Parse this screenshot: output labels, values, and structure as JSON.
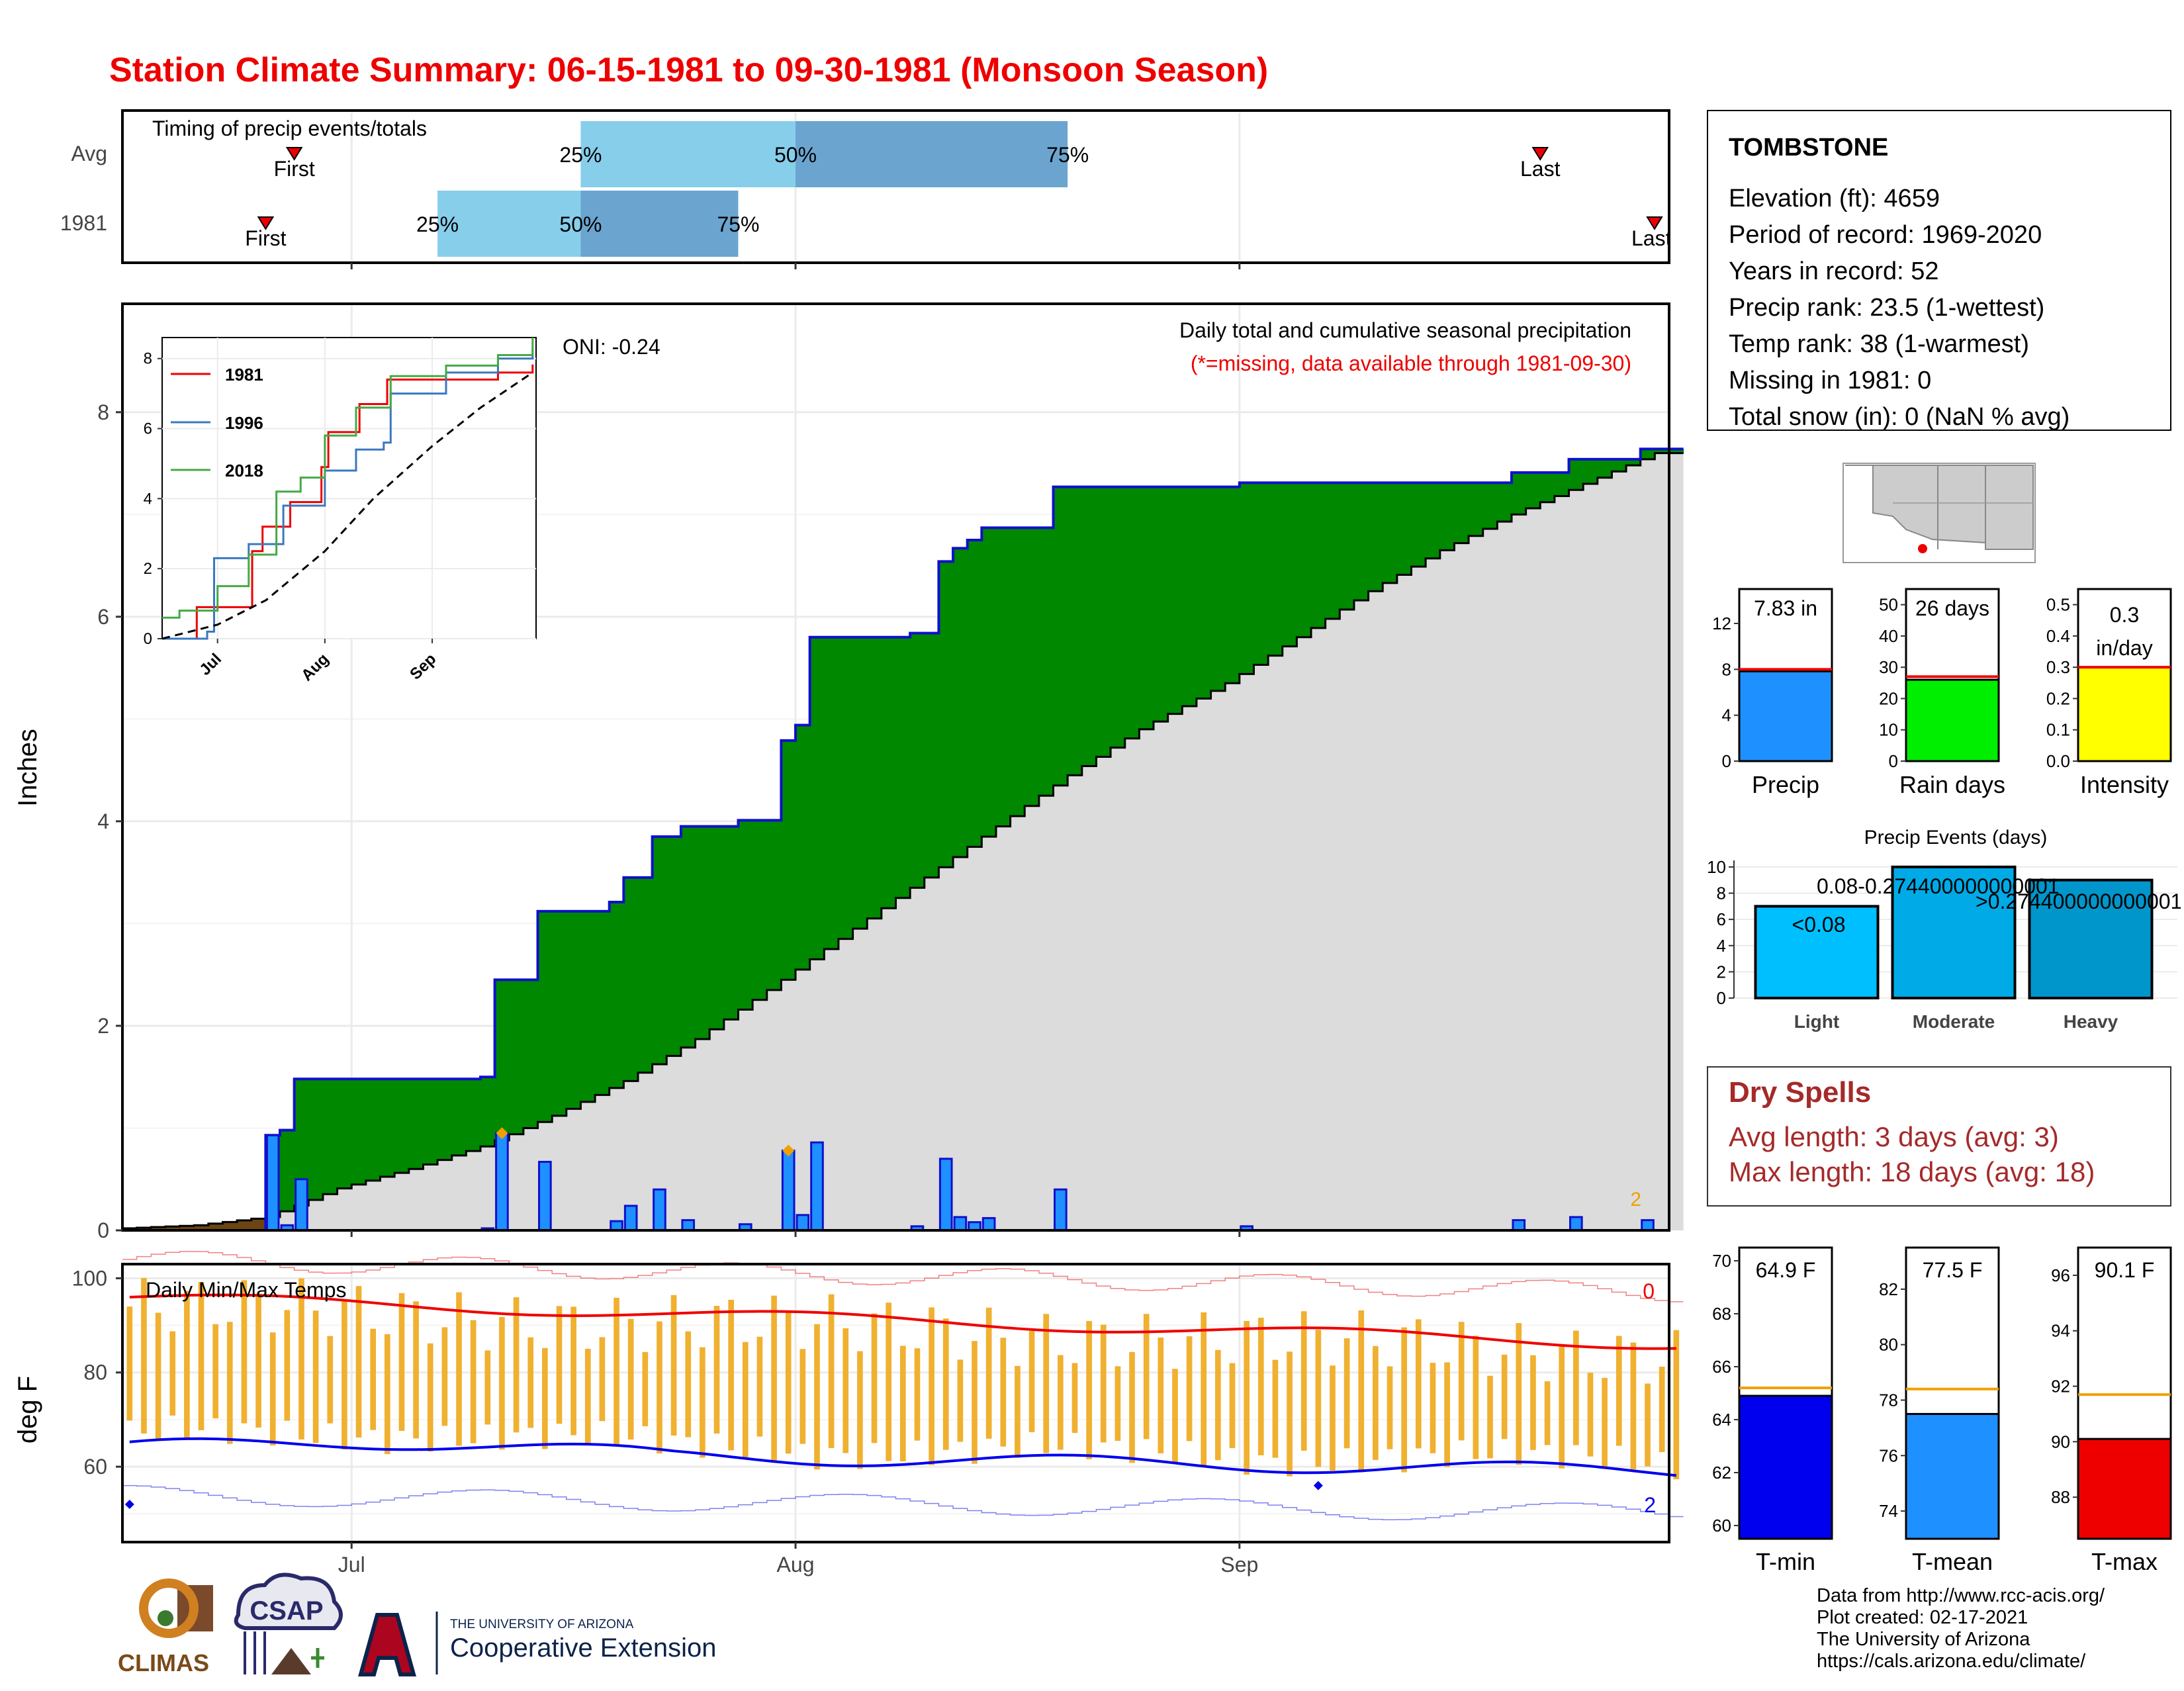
{
  "title": "Station Climate Summary: 06-15-1981 to 09-30-1981 (Monsoon Season)",
  "colors": {
    "title": "#ee0000",
    "green": "#008800",
    "brown": "#6b4513",
    "blue_bar": "#1e90ff",
    "dry": "#a52a2a",
    "tmin": "#0000ee",
    "tmean": "#1e90ff",
    "tmax": "#ee0000",
    "rain": "#00ee00",
    "intensity": "#ffff00",
    "orange": "#f0a000"
  },
  "timing": {
    "title": "Timing of precip events/totals",
    "rows": [
      {
        "label": "Avg",
        "first_label": "First",
        "last_label": "Last",
        "first_date": "2021-06-27",
        "last_date": "2021-09-22",
        "q25_date": "2021-07-17",
        "q50_date": "2021-08-01",
        "q75_date": "2021-08-20",
        "q25_label": "25%",
        "q50_label": "50%",
        "q75_label": "75%"
      },
      {
        "label": "1981",
        "first_label": "First",
        "last_label": "Last",
        "first_date": "2021-06-25",
        "last_date": "2021-09-30",
        "q25_date": "2021-07-07",
        "q50_date": "2021-07-17",
        "q75_date": "2021-07-28",
        "q25_label": "25%",
        "q50_label": "50%",
        "q75_label": "75%"
      }
    ]
  },
  "station": {
    "name": "TOMBSTONE",
    "lines": [
      "Elevation (ft): 4659",
      "Period of record: 1969-2020",
      "Years in record: 52",
      "Precip rank: 23.5 (1-wettest)",
      "Temp rank: 38 (1-warmest)",
      "Missing in 1981: 0",
      "Total snow (in): 0 (NaN % avg)"
    ]
  },
  "precip_panel": {
    "ylabel": "Inches",
    "title_line1": "Daily total and cumulative seasonal precipitation",
    "title_line2": "(*=missing, data available through 1981-09-30)",
    "oni": "ONI: -0.24",
    "count_label": "2",
    "x_ticks": [
      "Jul",
      "Aug",
      "Sep"
    ],
    "y_ticks": [
      "0",
      "2",
      "4",
      "6",
      "8"
    ]
  },
  "inset": {
    "legend": [
      "1981",
      "1996",
      "2018"
    ],
    "x_ticks": [
      "Jul",
      "Aug",
      "Sep"
    ],
    "y_ticks": [
      "0",
      "2",
      "4",
      "6",
      "8"
    ]
  },
  "temp_panel": {
    "title": "Daily Min/Max Temps",
    "ylabel": "deg F",
    "count_top": "0",
    "count_bottom": "2",
    "y_ticks": [
      "60",
      "80",
      "100"
    ],
    "x_ticks": [
      "Jul",
      "Aug",
      "Sep"
    ]
  },
  "summary_bars": {
    "precip": {
      "label": "Precip",
      "value_text": "7.83 in",
      "ticks": [
        "0",
        "4",
        "8",
        "12"
      ]
    },
    "rain": {
      "label": "Rain days",
      "value_text": "26 days",
      "ticks": [
        "0",
        "10",
        "20",
        "30",
        "40",
        "50"
      ]
    },
    "intensity": {
      "label": "Intensity",
      "value_text_1": "0.3",
      "value_text_2": "in/day",
      "ticks": [
        "0.0",
        "0.1",
        "0.2",
        "0.3",
        "0.4",
        "0.5"
      ]
    }
  },
  "events": {
    "title": "Precip Events (days)",
    "categories": [
      "Light",
      "Moderate",
      "Heavy"
    ],
    "labels": [
      "<0.08",
      "0.08-0.274400000000001",
      ">0.274400000000001"
    ],
    "ticks": [
      "0",
      "2",
      "4",
      "6",
      "8",
      "10"
    ]
  },
  "dry_spells": {
    "title": "Dry Spells",
    "line1": "Avg length: 3 days (avg: 3)",
    "line2": "Max length: 18 days (avg: 18)"
  },
  "temp_bars": {
    "tmin": {
      "label": "T-min",
      "value_text": "64.9 F",
      "ticks": [
        "60",
        "62",
        "64",
        "66",
        "68",
        "70"
      ]
    },
    "tmean": {
      "label": "T-mean",
      "value_text": "77.5 F",
      "ticks": [
        "74",
        "76",
        "78",
        "80",
        "82"
      ]
    },
    "tmax": {
      "label": "T-max",
      "value_text": "90.1 F",
      "ticks": [
        "88",
        "90",
        "92",
        "94",
        "96"
      ]
    }
  },
  "logos": {
    "climas": "CLIMAS",
    "csap": "CSAP",
    "ua_line1": "THE UNIVERSITY OF ARIZONA",
    "ua_line2": "Cooperative Extension"
  },
  "credits": [
    "Data from http://www.rcc-acis.org/",
    "Plot created: 02-17-2021",
    "The University of Arizona",
    "https://cals.arizona.edu/climate/"
  ],
  "chart_data": [
    {
      "type": "area",
      "name": "cumulative",
      "x_range": [
        "2021-06-15",
        "2021-09-30"
      ],
      "ylim": [
        0,
        8.6
      ],
      "daily_precip": [
        {
          "date": "2021-06-25",
          "value": 0.93
        },
        {
          "date": "2021-06-26",
          "value": 0.05
        },
        {
          "date": "2021-06-27",
          "value": 0.5
        },
        {
          "date": "2021-07-10",
          "value": 0.02
        },
        {
          "date": "2021-07-11",
          "value": 0.95
        },
        {
          "date": "2021-07-14",
          "value": 0.67
        },
        {
          "date": "2021-07-19",
          "value": 0.09
        },
        {
          "date": "2021-07-20",
          "value": 0.24
        },
        {
          "date": "2021-07-22",
          "value": 0.4
        },
        {
          "date": "2021-07-24",
          "value": 0.1
        },
        {
          "date": "2021-07-28",
          "value": 0.06
        },
        {
          "date": "2021-07-31",
          "value": 0.78
        },
        {
          "date": "2021-08-01",
          "value": 0.15
        },
        {
          "date": "2021-08-02",
          "value": 0.86
        },
        {
          "date": "2021-08-09",
          "value": 0.04
        },
        {
          "date": "2021-08-11",
          "value": 0.7
        },
        {
          "date": "2021-08-12",
          "value": 0.13
        },
        {
          "date": "2021-08-13",
          "value": 0.08
        },
        {
          "date": "2021-08-14",
          "value": 0.12
        },
        {
          "date": "2021-08-19",
          "value": 0.4
        },
        {
          "date": "2021-09-01",
          "value": 0.04
        },
        {
          "date": "2021-09-20",
          "value": 0.1
        },
        {
          "date": "2021-09-24",
          "value": 0.13
        },
        {
          "date": "2021-09-29",
          "value": 0.1
        }
      ],
      "avg_cumulative": [
        {
          "date": "2021-06-15",
          "value": 0.02
        },
        {
          "date": "2021-06-20",
          "value": 0.05
        },
        {
          "date": "2021-06-25",
          "value": 0.13
        },
        {
          "date": "2021-06-30",
          "value": 0.41
        },
        {
          "date": "2021-07-05",
          "value": 0.6
        },
        {
          "date": "2021-07-10",
          "value": 0.82
        },
        {
          "date": "2021-07-15",
          "value": 1.12
        },
        {
          "date": "2021-07-20",
          "value": 1.46
        },
        {
          "date": "2021-07-25",
          "value": 1.87
        },
        {
          "date": "2021-07-30",
          "value": 2.35
        },
        {
          "date": "2021-08-01",
          "value": 2.55
        },
        {
          "date": "2021-08-05",
          "value": 2.95
        },
        {
          "date": "2021-08-10",
          "value": 3.45
        },
        {
          "date": "2021-08-15",
          "value": 3.95
        },
        {
          "date": "2021-08-20",
          "value": 4.45
        },
        {
          "date": "2021-08-25",
          "value": 4.9
        },
        {
          "date": "2021-08-31",
          "value": 5.35
        },
        {
          "date": "2021-09-05",
          "value": 5.8
        },
        {
          "date": "2021-09-10",
          "value": 6.25
        },
        {
          "date": "2021-09-15",
          "value": 6.65
        },
        {
          "date": "2021-09-20",
          "value": 7.0
        },
        {
          "date": "2021-09-25",
          "value": 7.3
        },
        {
          "date": "2021-09-30",
          "value": 7.6
        }
      ]
    },
    {
      "type": "line",
      "name": "inset",
      "ylim": [
        0,
        8.5
      ],
      "series": [
        {
          "name": "1981",
          "points": [
            [
              "2021-06-15",
              0
            ],
            [
              "2021-06-25",
              0.9
            ],
            [
              "2021-07-11",
              2.5
            ],
            [
              "2021-07-14",
              3.2
            ],
            [
              "2021-07-22",
              3.9
            ],
            [
              "2021-07-31",
              4.9
            ],
            [
              "2021-08-02",
              5.9
            ],
            [
              "2021-08-11",
              6.7
            ],
            [
              "2021-08-19",
              7.4
            ],
            [
              "2021-09-20",
              7.6
            ],
            [
              "2021-09-30",
              7.83
            ]
          ]
        },
        {
          "name": "1996",
          "points": [
            [
              "2021-06-15",
              0
            ],
            [
              "2021-06-28",
              0.2
            ],
            [
              "2021-06-30",
              2.3
            ],
            [
              "2021-07-10",
              2.7
            ],
            [
              "2021-07-20",
              3.8
            ],
            [
              "2021-08-01",
              4.8
            ],
            [
              "2021-08-10",
              5.4
            ],
            [
              "2021-08-18",
              5.6
            ],
            [
              "2021-08-20",
              7.0
            ],
            [
              "2021-09-05",
              7.6
            ],
            [
              "2021-09-20",
              8.0
            ],
            [
              "2021-09-30",
              8.3
            ]
          ]
        },
        {
          "name": "2018",
          "points": [
            [
              "2021-06-15",
              0.6
            ],
            [
              "2021-06-20",
              0.8
            ],
            [
              "2021-07-01",
              1.5
            ],
            [
              "2021-07-10",
              2.4
            ],
            [
              "2021-07-18",
              4.2
            ],
            [
              "2021-07-25",
              4.6
            ],
            [
              "2021-08-01",
              5.8
            ],
            [
              "2021-08-10",
              6.6
            ],
            [
              "2021-08-20",
              7.5
            ],
            [
              "2021-09-05",
              7.8
            ],
            [
              "2021-09-20",
              8.1
            ],
            [
              "2021-09-30",
              8.6
            ]
          ]
        },
        {
          "name": "avg",
          "points": [
            [
              "2021-06-15",
              0
            ],
            [
              "2021-07-01",
              0.4
            ],
            [
              "2021-07-15",
              1.1
            ],
            [
              "2021-08-01",
              2.5
            ],
            [
              "2021-08-15",
              4.0
            ],
            [
              "2021-09-01",
              5.5
            ],
            [
              "2021-09-15",
              6.6
            ],
            [
              "2021-09-30",
              7.6
            ]
          ]
        }
      ]
    },
    {
      "type": "bar",
      "name": "summary",
      "series": [
        {
          "name": "Precip",
          "value": 7.83,
          "avg": 8.0,
          "ylim": [
            0,
            15
          ]
        },
        {
          "name": "Rain days",
          "value": 26,
          "avg": 27,
          "ylim": [
            0,
            55
          ]
        },
        {
          "name": "Intensity",
          "value": 0.3,
          "avg": 0.3,
          "ylim": [
            0,
            0.55
          ]
        }
      ]
    },
    {
      "type": "bar",
      "name": "events",
      "categories": [
        "Light",
        "Moderate",
        "Heavy"
      ],
      "values": [
        7,
        10,
        9
      ],
      "ylim": [
        0,
        10.5
      ]
    },
    {
      "type": "bar",
      "name": "temps",
      "series": [
        {
          "name": "T-min",
          "value": 64.9,
          "avg": 65.2,
          "ylim": [
            59.5,
            70.5
          ]
        },
        {
          "name": "T-mean",
          "value": 77.5,
          "avg": 78.4,
          "ylim": [
            73,
            83.5
          ]
        },
        {
          "name": "T-max",
          "value": 90.1,
          "avg": 91.7,
          "ylim": [
            86.5,
            97
          ]
        }
      ]
    }
  ]
}
